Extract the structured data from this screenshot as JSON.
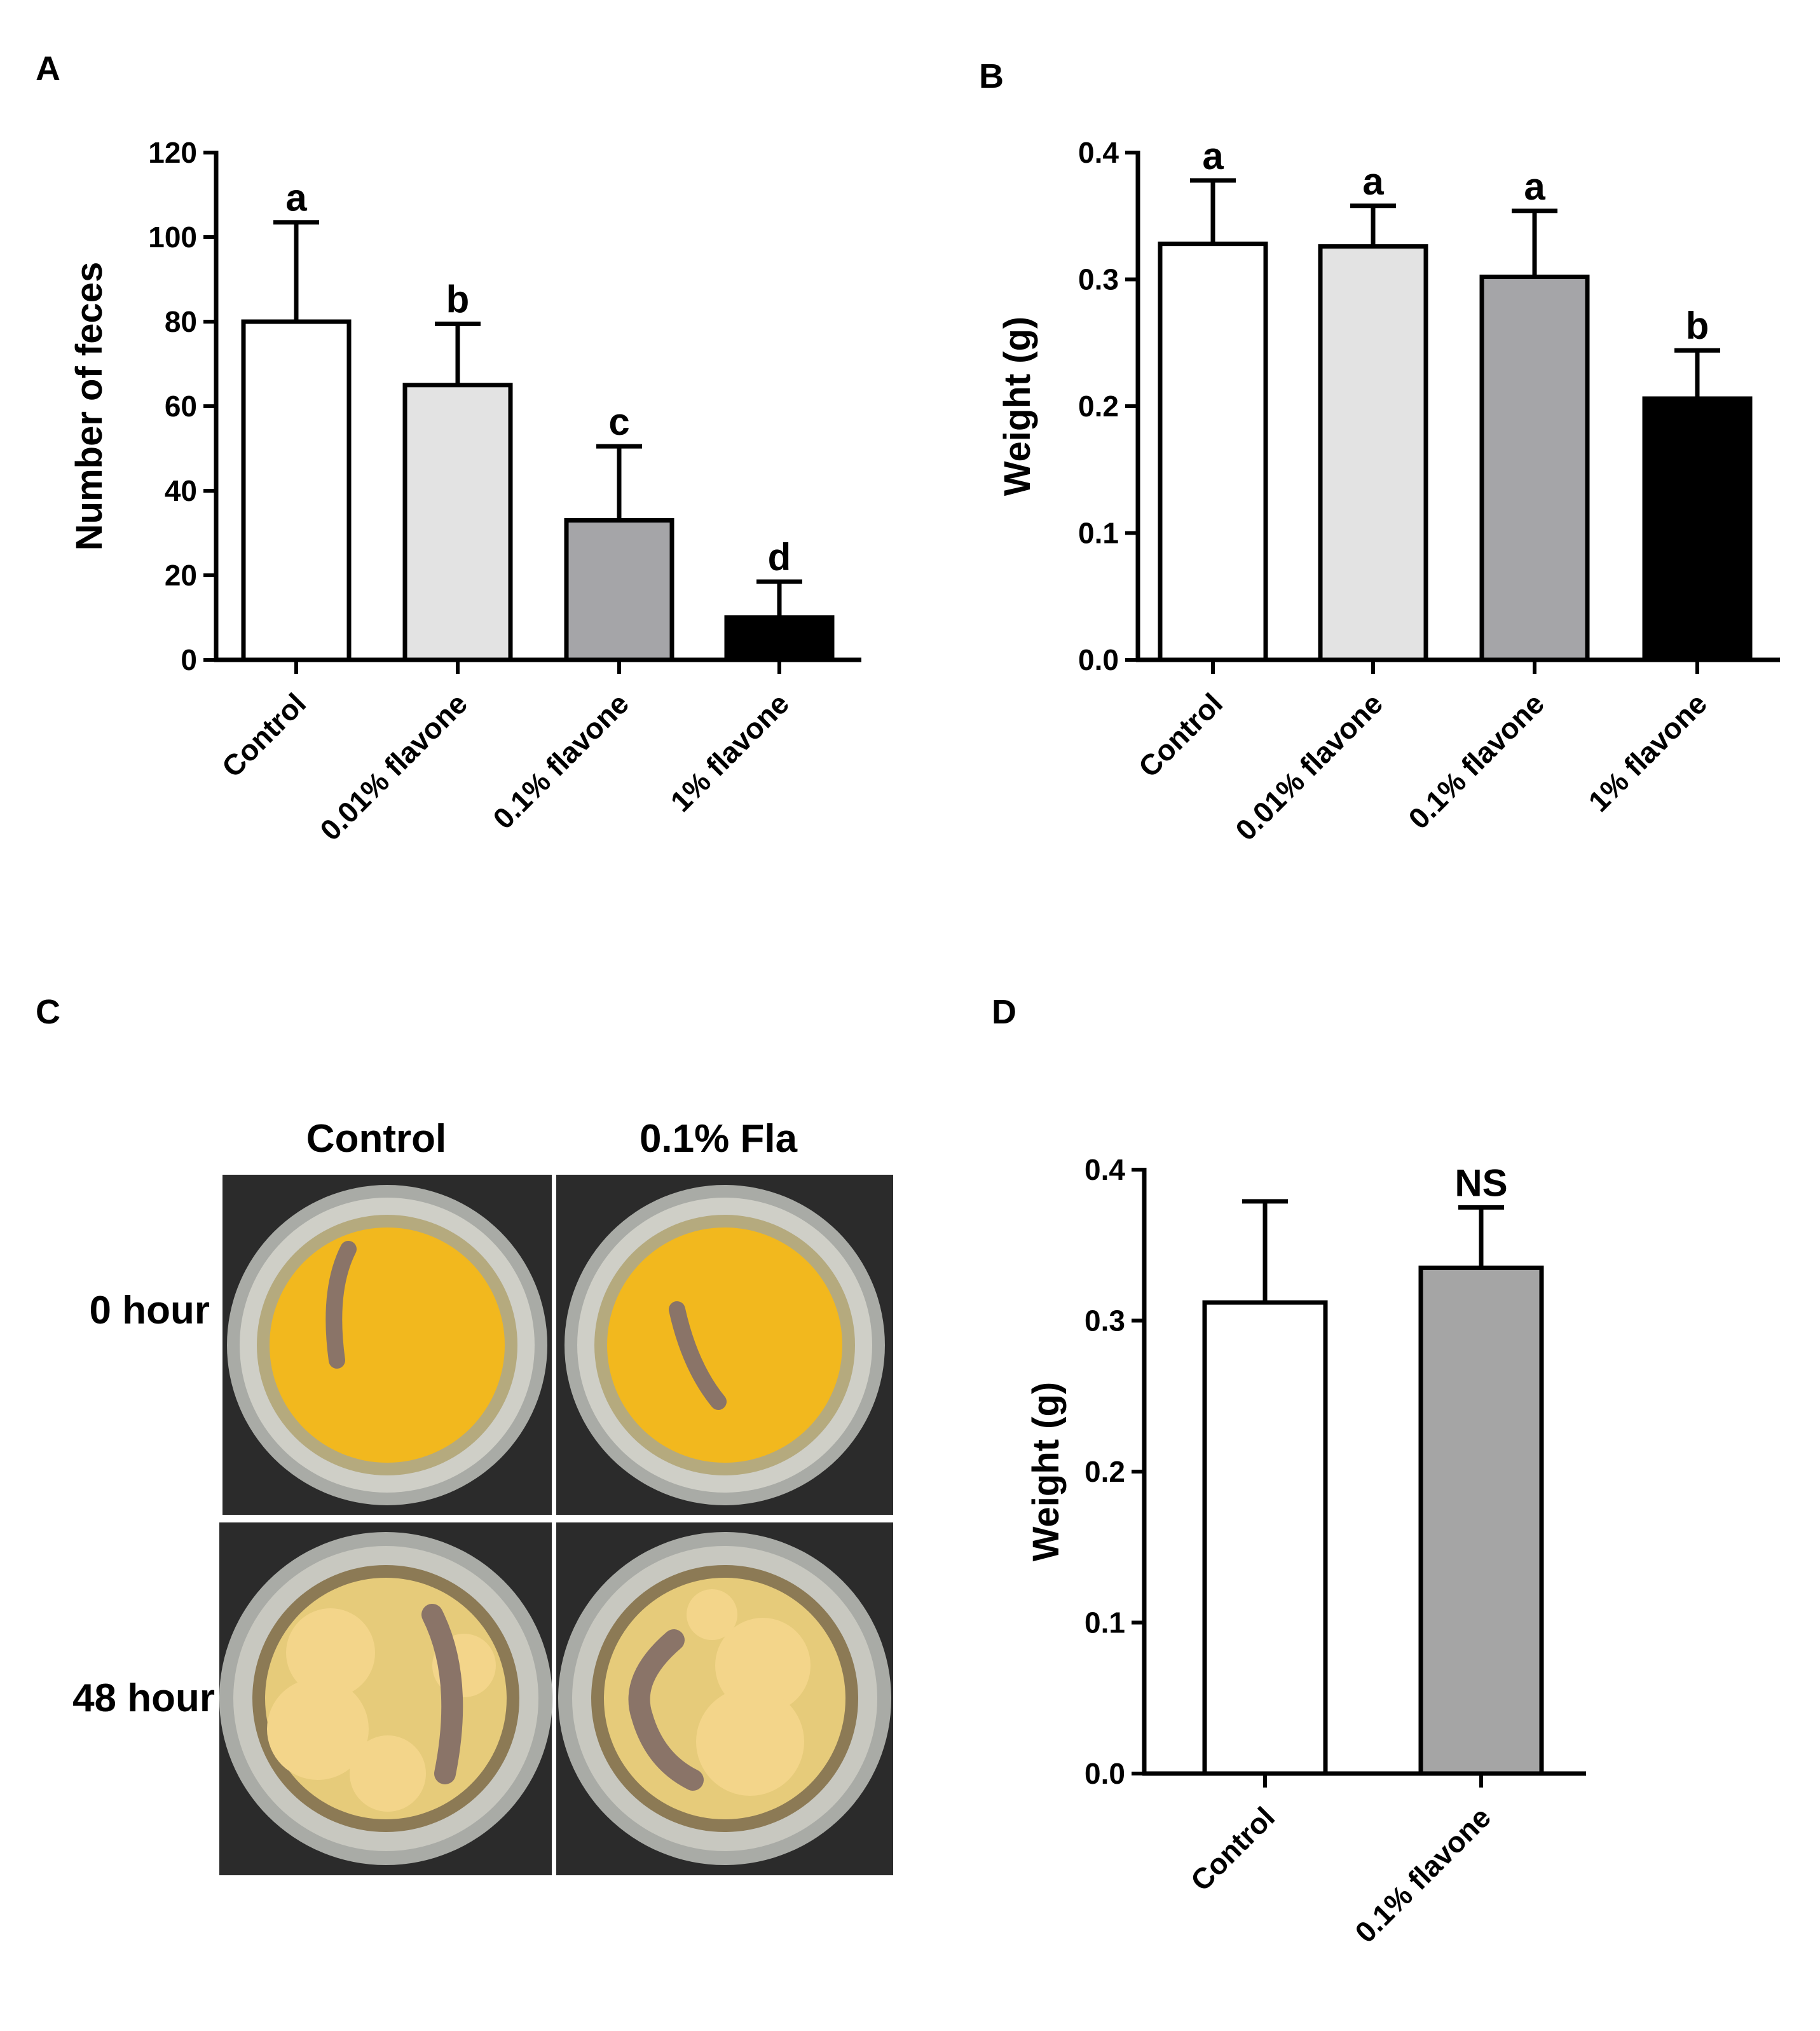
{
  "panels": {
    "A": {
      "letter": "A"
    },
    "B": {
      "letter": "B"
    },
    "C": {
      "letter": "C",
      "column_labels": [
        "Control",
        "0.1% Fla"
      ],
      "row_labels": [
        "0 hour",
        "48 hour"
      ],
      "colors": {
        "diet": "#f2b81e",
        "larva": "#8a7468",
        "feces": "#f3d58a",
        "background": "#2a2a2a",
        "cup": "#b8b8b0"
      }
    },
    "D": {
      "letter": "D"
    }
  },
  "chart_data": [
    {
      "id": "A",
      "type": "bar",
      "categories": [
        "Control",
        "0.01% flavone",
        "0.1% flavone",
        "1% flavone"
      ],
      "values": [
        80,
        65,
        33,
        10
      ],
      "errors": [
        23.5,
        14.5,
        17.5,
        8.5
      ],
      "significance": [
        "a",
        "b",
        "c",
        "d"
      ],
      "colors": [
        "#ffffff",
        "#e3e3e3",
        "#a5a5a8",
        "#000000"
      ],
      "ylabel": "Number of feces",
      "ylim": [
        0,
        120
      ],
      "yticks": [
        "0",
        "20",
        "40",
        "60",
        "80",
        "100",
        "120"
      ],
      "ytick_values": [
        0,
        20,
        40,
        60,
        80,
        100,
        120
      ]
    },
    {
      "id": "B",
      "type": "bar",
      "categories": [
        "Control",
        "0.01% flavone",
        "0.1% flavone",
        "1% flavone"
      ],
      "values": [
        0.328,
        0.326,
        0.302,
        0.206
      ],
      "errors": [
        0.05,
        0.032,
        0.052,
        0.038
      ],
      "significance": [
        "a",
        "a",
        "a",
        "b"
      ],
      "colors": [
        "#ffffff",
        "#e3e3e3",
        "#a5a5a8",
        "#000000"
      ],
      "ylabel": "Weight (g)",
      "ylim": [
        0,
        0.4
      ],
      "yticks": [
        "0.0",
        "0.1",
        "0.2",
        "0.3",
        "0.4"
      ],
      "ytick_values": [
        0,
        0.1,
        0.2,
        0.3,
        0.4
      ]
    },
    {
      "id": "D",
      "type": "bar",
      "categories": [
        "Control",
        "0.1% flavone"
      ],
      "values": [
        0.312,
        0.335
      ],
      "errors": [
        0.067,
        0.04
      ],
      "significance": [
        "",
        "NS"
      ],
      "colors": [
        "#ffffff",
        "#a5a5a5"
      ],
      "ylabel": "Weight (g)",
      "ylim": [
        0,
        0.4
      ],
      "yticks": [
        "0.0",
        "0.1",
        "0.2",
        "0.3",
        "0.4"
      ],
      "ytick_values": [
        0,
        0.1,
        0.2,
        0.3,
        0.4
      ]
    }
  ]
}
